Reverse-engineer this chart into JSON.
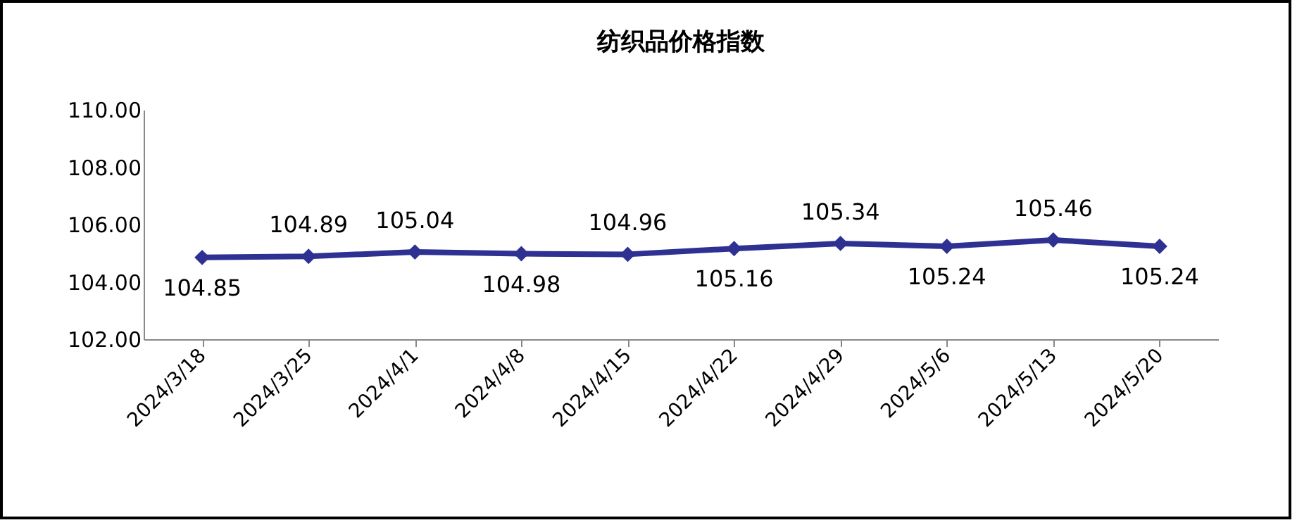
{
  "chart_data": {
    "type": "line",
    "title": "纺织品价格指数",
    "categories": [
      "2024/3/18",
      "2024/3/25",
      "2024/4/1",
      "2024/4/8",
      "2024/4/15",
      "2024/4/22",
      "2024/4/29",
      "2024/5/6",
      "2024/5/13",
      "2024/5/20"
    ],
    "series": [
      {
        "color": "#2e3192",
        "values": [
          104.85,
          104.89,
          105.04,
          104.98,
          104.96,
          105.16,
          105.34,
          105.24,
          105.46,
          105.24
        ]
      }
    ],
    "ylim": [
      102,
      110
    ],
    "yticks": [
      {
        "value": 102,
        "label": "102.00"
      },
      {
        "value": 104,
        "label": "104.00"
      },
      {
        "value": 106,
        "label": "106.00"
      },
      {
        "value": 108,
        "label": "108.00"
      },
      {
        "value": 110,
        "label": "110.00"
      }
    ],
    "marker": "diamond",
    "line_style": "solid",
    "data_labels": true,
    "grid": false
  }
}
